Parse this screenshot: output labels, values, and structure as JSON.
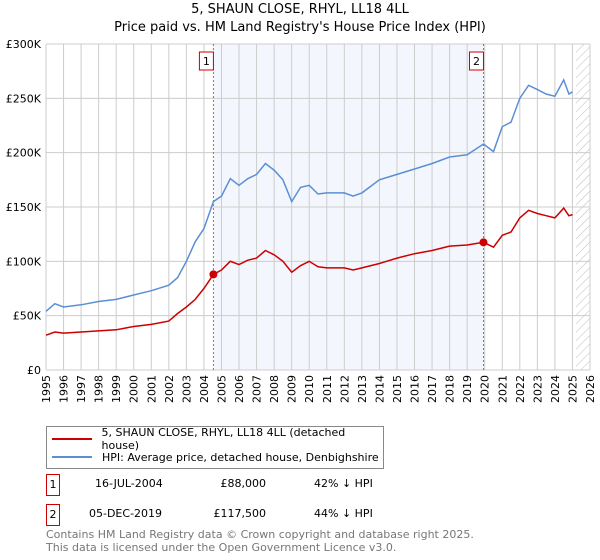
{
  "chart_data": {
    "type": "line",
    "title": "5, SHAUN CLOSE, RHYL, LL18 4LL",
    "subtitle": "Price paid vs. HM Land Registry's House Price Index (HPI)",
    "xlim": [
      1995,
      2026
    ],
    "ylim": [
      0,
      300000
    ],
    "x_ticks": [
      "1995",
      "1996",
      "1997",
      "1998",
      "1999",
      "2000",
      "2001",
      "2002",
      "2003",
      "2004",
      "2005",
      "2006",
      "2007",
      "2008",
      "2009",
      "2010",
      "2011",
      "2012",
      "2013",
      "2014",
      "2015",
      "2016",
      "2017",
      "2018",
      "2019",
      "2020",
      "2021",
      "2022",
      "2023",
      "2024",
      "2025",
      "2026"
    ],
    "y_ticks": [
      {
        "v": 0,
        "label": "£0"
      },
      {
        "v": 50000,
        "label": "£50K"
      },
      {
        "v": 100000,
        "label": "£100K"
      },
      {
        "v": 150000,
        "label": "£150K"
      },
      {
        "v": 200000,
        "label": "£200K"
      },
      {
        "v": 250000,
        "label": "£250K"
      },
      {
        "v": 300000,
        "label": "£300K"
      }
    ],
    "grid": true,
    "shaded_range": [
      2004.54,
      2019.93
    ],
    "hatched_from": 2025.2,
    "series": [
      {
        "name": "5, SHAUN CLOSE, RHYL, LL18 4LL (detached house)",
        "color": "#cc0000",
        "x": [
          1995,
          1995.5,
          1996,
          1997,
          1998,
          1999,
          2000,
          2001,
          2002,
          2002.5,
          2003,
          2003.5,
          2004,
          2004.54,
          2005,
          2005.5,
          2006,
          2006.5,
          2007,
          2007.5,
          2008,
          2008.5,
          2009,
          2009.5,
          2010,
          2010.5,
          2011,
          2012,
          2012.5,
          2013,
          2014,
          2015,
          2016,
          2017,
          2018,
          2019,
          2019.93,
          2020.5,
          2021,
          2021.5,
          2022,
          2022.5,
          2023,
          2023.5,
          2024,
          2024.5,
          2024.8,
          2025
        ],
        "y": [
          32000,
          35000,
          34000,
          35000,
          36000,
          37000,
          40000,
          42000,
          45000,
          52000,
          58000,
          65000,
          75000,
          88000,
          92000,
          100000,
          97000,
          101000,
          103000,
          110000,
          106000,
          100000,
          90000,
          96000,
          100000,
          95000,
          94000,
          94000,
          92000,
          94000,
          98000,
          103000,
          107000,
          110000,
          114000,
          115000,
          117500,
          113000,
          124000,
          127000,
          140000,
          147000,
          144000,
          142000,
          140000,
          149000,
          142000,
          143000
        ]
      },
      {
        "name": "HPI: Average price, detached house, Denbighshire",
        "color": "#5b8fd4",
        "x": [
          1995,
          1995.5,
          1996,
          1997,
          1998,
          1999,
          2000,
          2001,
          2002,
          2002.5,
          2003,
          2003.5,
          2004,
          2004.54,
          2005,
          2005.5,
          2006,
          2006.5,
          2007,
          2007.5,
          2008,
          2008.5,
          2009,
          2009.5,
          2010,
          2010.5,
          2011,
          2012,
          2012.5,
          2013,
          2014,
          2015,
          2016,
          2017,
          2018,
          2019,
          2019.93,
          2020.5,
          2021,
          2021.5,
          2022,
          2022.5,
          2023,
          2023.5,
          2024,
          2024.5,
          2024.8,
          2025
        ],
        "y": [
          54000,
          61000,
          58000,
          60000,
          63000,
          65000,
          69000,
          73000,
          78000,
          85000,
          100000,
          118000,
          130000,
          155000,
          160000,
          176000,
          170000,
          176000,
          180000,
          190000,
          184000,
          175000,
          155000,
          168000,
          170000,
          162000,
          163000,
          163000,
          160000,
          163000,
          175000,
          180000,
          185000,
          190000,
          196000,
          198000,
          208000,
          201000,
          224000,
          228000,
          250000,
          262000,
          258000,
          254000,
          252000,
          267000,
          254000,
          256000
        ]
      }
    ],
    "annotations": [
      {
        "label": "1",
        "x": 2004.54,
        "y": 88000
      },
      {
        "label": "2",
        "x": 2019.93,
        "y": 117500
      }
    ]
  },
  "legend": {
    "items": [
      "5, SHAUN CLOSE, RHYL, LL18 4LL (detached house)",
      "HPI: Average price, detached house, Denbighshire"
    ]
  },
  "sales": [
    {
      "num": "1",
      "date": "16-JUL-2004",
      "price": "£88,000",
      "hpi": "42% ↓ HPI"
    },
    {
      "num": "2",
      "date": "05-DEC-2019",
      "price": "£117,500",
      "hpi": "44% ↓ HPI"
    }
  ],
  "footer": [
    "Contains HM Land Registry data © Crown copyright and database right 2025.",
    "This data is licensed under the Open Government Licence v3.0."
  ]
}
